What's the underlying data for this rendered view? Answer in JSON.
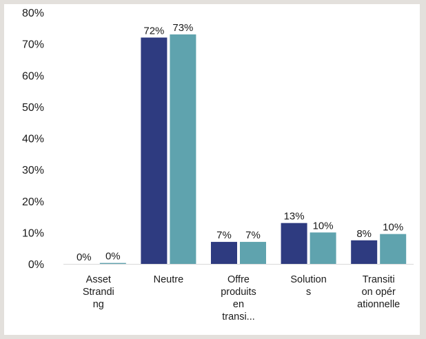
{
  "chart_data": {
    "type": "bar",
    "title": "",
    "xlabel": "",
    "ylabel": "",
    "ylim": [
      0,
      80
    ],
    "y_ticks": [
      "0%",
      "10%",
      "20%",
      "30%",
      "40%",
      "50%",
      "60%",
      "70%",
      "80%"
    ],
    "categories": [
      [
        "Asset",
        "Strandi",
        "ng"
      ],
      [
        "Neutre"
      ],
      [
        "Offre",
        "produits",
        "en",
        "transi..."
      ],
      [
        "Solution",
        "s"
      ],
      [
        "Transiti",
        "on opér",
        "ationnelle"
      ]
    ],
    "series": [
      {
        "color": "#2e3b80",
        "values": [
          0,
          72,
          7,
          13,
          7.5
        ],
        "labels": [
          "0%",
          "72%",
          "7%",
          "13%",
          "8%"
        ]
      },
      {
        "color": "#5fa3ae",
        "values": [
          0.3,
          73,
          7,
          10,
          9.5
        ],
        "labels": [
          "0%",
          "73%",
          "7%",
          "10%",
          "10%"
        ]
      }
    ],
    "grid": false,
    "legend": "none"
  }
}
